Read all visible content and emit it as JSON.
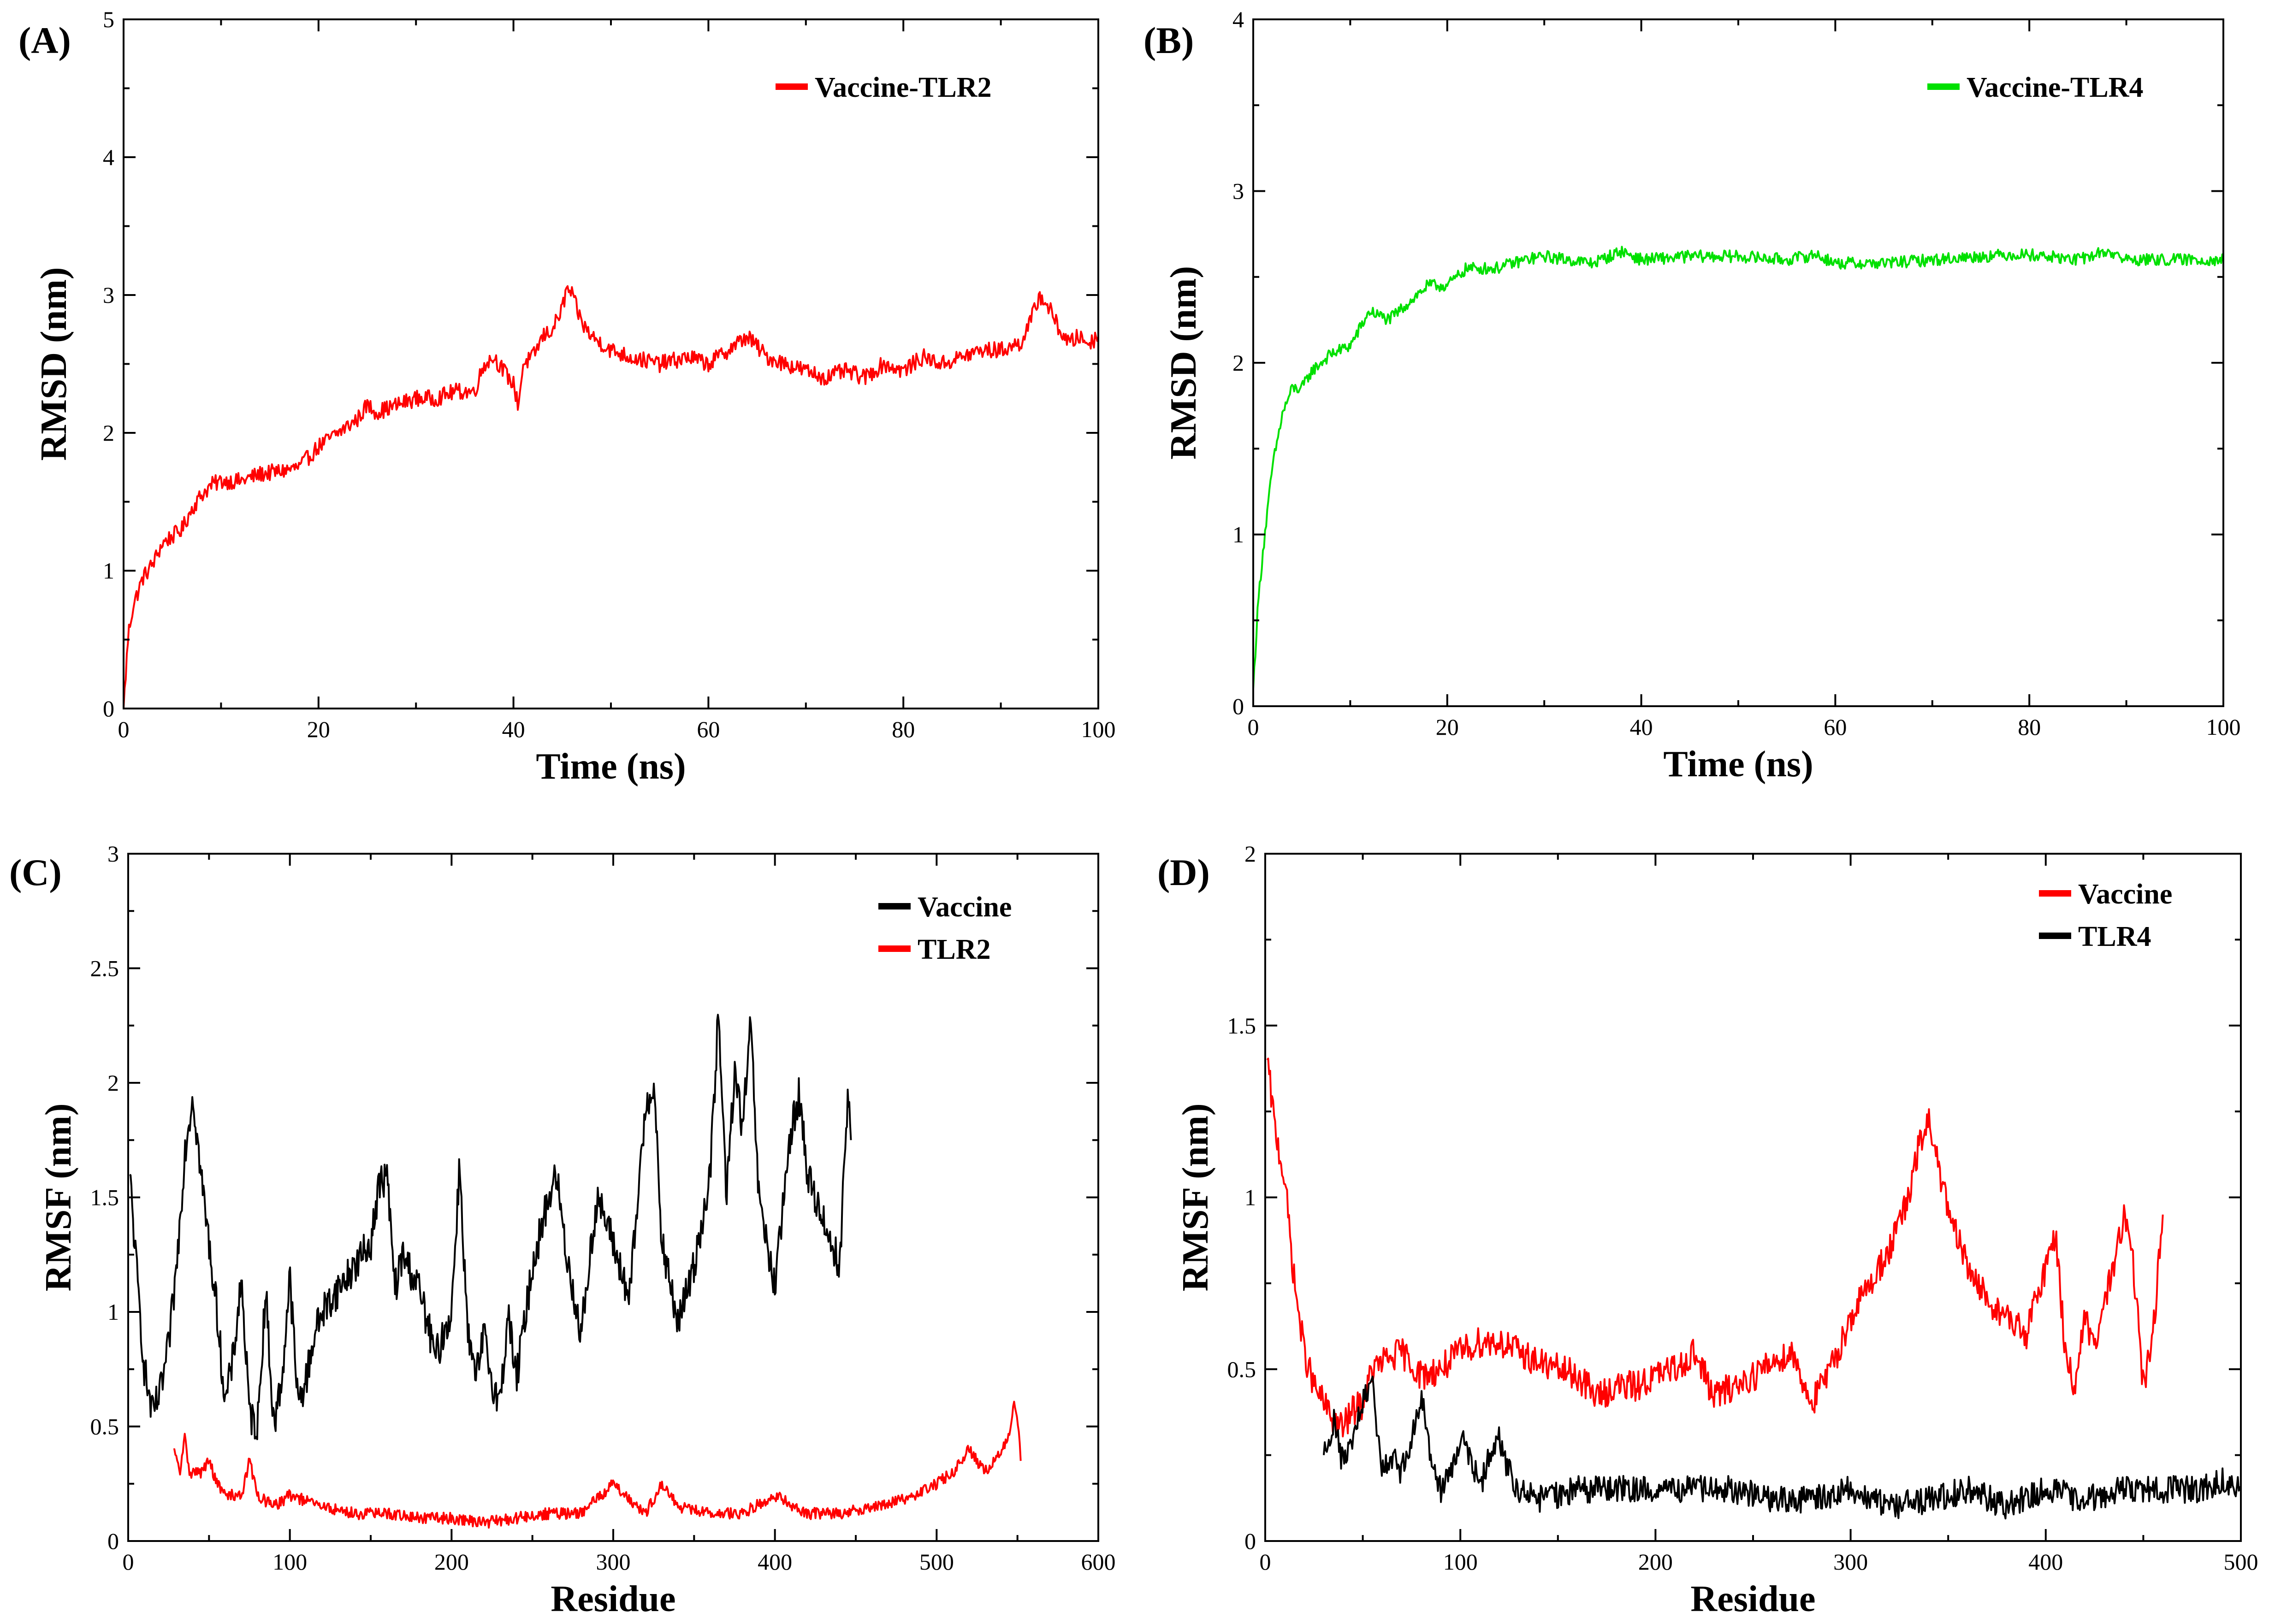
{
  "chart_data": [
    {
      "panel": "(A)",
      "type": "line",
      "xlabel": "Time (ns)",
      "ylabel": "RMSD (nm)",
      "xlim": [
        0,
        100
      ],
      "ylim": [
        0,
        5
      ],
      "xticks": [
        0,
        20,
        40,
        60,
        80,
        100
      ],
      "yticks": [
        0,
        1,
        2,
        3,
        4,
        5
      ],
      "xtick_labels": [
        "0",
        "20",
        "40",
        "60",
        "80",
        "100"
      ],
      "ytick_labels": [
        "0",
        "1",
        "2",
        "3",
        "4",
        "5"
      ],
      "legend_position": "top-right",
      "series": [
        {
          "name": "Vaccine-TLR2",
          "color": "#ff0000",
          "noise": 0.06,
          "x": [
            0,
            0.5,
            1,
            2,
            3,
            4,
            5,
            6,
            7,
            8,
            9,
            10,
            12,
            14,
            16,
            18,
            20,
            22,
            24,
            25,
            26,
            28,
            30,
            32,
            34,
            36,
            37,
            38,
            39,
            40,
            40.5,
            41,
            42,
            43,
            44,
            45,
            45.5,
            46,
            47,
            48,
            50,
            52,
            55,
            58,
            60,
            62,
            64,
            66,
            68,
            70,
            72,
            74,
            76,
            78,
            80,
            82,
            84,
            86,
            88,
            90,
            92,
            93,
            94,
            95,
            96,
            97,
            98,
            99,
            100
          ],
          "y": [
            0.0,
            0.55,
            0.75,
            0.95,
            1.05,
            1.2,
            1.25,
            1.3,
            1.45,
            1.55,
            1.62,
            1.65,
            1.65,
            1.7,
            1.72,
            1.75,
            1.9,
            2.0,
            2.1,
            2.2,
            2.15,
            2.2,
            2.25,
            2.25,
            2.3,
            2.3,
            2.5,
            2.55,
            2.45,
            2.35,
            2.2,
            2.5,
            2.55,
            2.7,
            2.75,
            2.9,
            3.05,
            3.0,
            2.8,
            2.7,
            2.6,
            2.55,
            2.5,
            2.55,
            2.5,
            2.6,
            2.7,
            2.55,
            2.5,
            2.45,
            2.4,
            2.45,
            2.4,
            2.5,
            2.45,
            2.55,
            2.5,
            2.55,
            2.6,
            2.6,
            2.65,
            2.8,
            3.0,
            2.9,
            2.75,
            2.65,
            2.7,
            2.65,
            2.7
          ]
        }
      ]
    },
    {
      "panel": "(B)",
      "type": "line",
      "xlabel": "Time (ns)",
      "ylabel": "RMSD (nm)",
      "xlim": [
        0,
        100
      ],
      "ylim": [
        0,
        4
      ],
      "xticks": [
        0,
        20,
        40,
        60,
        80,
        100
      ],
      "yticks": [
        0,
        1,
        2,
        3,
        4
      ],
      "xtick_labels": [
        "0",
        "20",
        "40",
        "60",
        "80",
        "100"
      ],
      "ytick_labels": [
        "0",
        "1",
        "2",
        "3",
        "4"
      ],
      "legend_position": "top-right",
      "series": [
        {
          "name": "Vaccine-TLR4",
          "color": "#00e000",
          "noise": 0.035,
          "x": [
            0,
            0.5,
            1,
            2,
            3,
            4,
            5,
            6,
            8,
            10,
            12,
            14,
            16,
            18,
            20,
            22,
            25,
            28,
            30,
            35,
            38,
            40,
            45,
            50,
            55,
            58,
            60,
            65,
            70,
            75,
            78,
            80,
            85,
            88,
            90,
            95,
            100
          ],
          "y": [
            0.1,
            0.6,
            0.9,
            1.4,
            1.7,
            1.85,
            1.85,
            1.95,
            2.05,
            2.1,
            2.3,
            2.25,
            2.35,
            2.45,
            2.45,
            2.55,
            2.55,
            2.6,
            2.62,
            2.58,
            2.65,
            2.6,
            2.62,
            2.62,
            2.6,
            2.63,
            2.58,
            2.58,
            2.6,
            2.62,
            2.63,
            2.63,
            2.6,
            2.65,
            2.6,
            2.6,
            2.6
          ]
        }
      ]
    },
    {
      "panel": "(C)",
      "type": "line",
      "xlabel": "Residue",
      "ylabel": "RMSF (nm)",
      "xlim": [
        0,
        600
      ],
      "ylim": [
        0,
        3
      ],
      "xticks": [
        0,
        100,
        200,
        300,
        400,
        500,
        600
      ],
      "yticks": [
        0,
        0.5,
        1,
        1.5,
        2,
        2.5,
        3
      ],
      "xtick_labels": [
        "0",
        "100",
        "200",
        "300",
        "400",
        "500",
        "600"
      ],
      "ytick_labels": [
        "0",
        "0.5",
        "1",
        "1.5",
        "2",
        "2.5",
        "3"
      ],
      "legend_position": "top-right",
      "series": [
        {
          "name": "Vaccine",
          "color": "#000000",
          "noise": 0.08,
          "x": [
            1,
            5,
            10,
            15,
            20,
            25,
            30,
            35,
            40,
            45,
            50,
            55,
            60,
            65,
            70,
            75,
            80,
            85,
            90,
            95,
            100,
            105,
            110,
            115,
            120,
            130,
            140,
            150,
            155,
            160,
            165,
            170,
            180,
            190,
            200,
            205,
            210,
            215,
            220,
            225,
            230,
            235,
            240,
            250,
            260,
            265,
            270,
            280,
            290,
            300,
            310,
            320,
            325,
            330,
            340,
            350,
            360,
            365,
            370,
            375,
            380,
            385,
            390,
            400,
            410,
            415,
            420,
            430,
            440,
            445,
            447
          ],
          "y": [
            1.6,
            1.2,
            0.75,
            0.55,
            0.65,
            0.85,
            1.2,
            1.7,
            1.95,
            1.6,
            1.3,
            1.0,
            0.6,
            0.8,
            1.15,
            0.55,
            0.5,
            1.1,
            0.5,
            0.7,
            1.15,
            0.6,
            0.7,
            0.9,
            1.0,
            1.1,
            1.2,
            1.3,
            1.55,
            1.6,
            1.1,
            1.25,
            1.1,
            0.8,
            1.0,
            1.65,
            0.9,
            0.7,
            0.9,
            0.7,
            0.6,
            1.0,
            0.7,
            1.2,
            1.5,
            1.6,
            1.3,
            0.9,
            1.5,
            1.3,
            1.05,
            1.9,
            2.0,
            1.3,
            0.95,
            1.2,
            1.6,
            2.3,
            1.5,
            2.05,
            1.8,
            2.25,
            1.5,
            1.1,
            1.8,
            1.95,
            1.6,
            1.4,
            1.2,
            1.95,
            1.75
          ]
        },
        {
          "name": "TLR2",
          "color": "#ff0000",
          "noise": 0.025,
          "x": [
            28,
            32,
            35,
            38,
            45,
            50,
            55,
            60,
            70,
            75,
            80,
            90,
            100,
            120,
            140,
            160,
            180,
            200,
            220,
            240,
            260,
            280,
            300,
            320,
            330,
            340,
            360,
            380,
            400,
            420,
            440,
            460,
            480,
            500,
            510,
            520,
            530,
            540,
            545,
            548,
            550,
            552
          ],
          "y": [
            0.4,
            0.3,
            0.45,
            0.3,
            0.3,
            0.35,
            0.25,
            0.2,
            0.2,
            0.35,
            0.2,
            0.15,
            0.2,
            0.15,
            0.12,
            0.12,
            0.1,
            0.1,
            0.08,
            0.1,
            0.12,
            0.12,
            0.25,
            0.12,
            0.25,
            0.15,
            0.12,
            0.12,
            0.2,
            0.12,
            0.12,
            0.15,
            0.18,
            0.25,
            0.3,
            0.4,
            0.3,
            0.4,
            0.45,
            0.6,
            0.55,
            0.35
          ]
        }
      ]
    },
    {
      "panel": "(D)",
      "type": "line",
      "xlabel": "Residue",
      "ylabel": "RMSF (nm)",
      "xlim": [
        0,
        500
      ],
      "ylim": [
        0,
        2
      ],
      "xticks": [
        0,
        100,
        200,
        300,
        400,
        500
      ],
      "yticks": [
        0,
        0.5,
        1,
        1.5,
        2
      ],
      "xtick_labels": [
        "0",
        "100",
        "200",
        "300",
        "400",
        "500"
      ],
      "ytick_labels": [
        "0",
        "0.5",
        "1",
        "1.5",
        "2"
      ],
      "legend_position": "top-right",
      "series": [
        {
          "name": "Vaccine",
          "color": "#ff0000",
          "noise": 0.045,
          "x": [
            1,
            5,
            10,
            15,
            20,
            25,
            30,
            35,
            40,
            45,
            50,
            55,
            60,
            70,
            80,
            90,
            100,
            110,
            120,
            130,
            140,
            150,
            160,
            170,
            180,
            190,
            200,
            210,
            220,
            230,
            240,
            250,
            260,
            270,
            280,
            290,
            300,
            310,
            320,
            330,
            335,
            340,
            345,
            350,
            360,
            370,
            380,
            390,
            395,
            400,
            405,
            410,
            415,
            420,
            425,
            430,
            435,
            440,
            445,
            450,
            455,
            460
          ],
          "y": [
            1.4,
            1.2,
            1.05,
            0.75,
            0.55,
            0.45,
            0.4,
            0.35,
            0.33,
            0.38,
            0.4,
            0.5,
            0.52,
            0.55,
            0.48,
            0.5,
            0.55,
            0.58,
            0.58,
            0.55,
            0.52,
            0.5,
            0.48,
            0.42,
            0.45,
            0.45,
            0.48,
            0.5,
            0.55,
            0.42,
            0.45,
            0.48,
            0.52,
            0.55,
            0.4,
            0.5,
            0.65,
            0.75,
            0.85,
            1.0,
            1.15,
            1.22,
            1.1,
            0.95,
            0.8,
            0.7,
            0.65,
            0.6,
            0.7,
            0.8,
            0.9,
            0.55,
            0.45,
            0.65,
            0.55,
            0.7,
            0.8,
            0.95,
            0.8,
            0.45,
            0.6,
            0.95
          ]
        },
        {
          "name": "TLR4",
          "color": "#000000",
          "noise": 0.04,
          "x": [
            30,
            35,
            40,
            45,
            50,
            55,
            60,
            65,
            70,
            75,
            80,
            85,
            90,
            95,
            100,
            105,
            110,
            115,
            120,
            125,
            130,
            140,
            160,
            180,
            200,
            220,
            240,
            260,
            280,
            300,
            320,
            340,
            360,
            380,
            400,
            420,
            440,
            460,
            480,
            490,
            500
          ],
          "y": [
            0.25,
            0.35,
            0.22,
            0.3,
            0.4,
            0.45,
            0.2,
            0.25,
            0.2,
            0.3,
            0.42,
            0.25,
            0.15,
            0.2,
            0.3,
            0.25,
            0.15,
            0.25,
            0.3,
            0.2,
            0.15,
            0.12,
            0.15,
            0.15,
            0.15,
            0.15,
            0.15,
            0.12,
            0.12,
            0.15,
            0.1,
            0.12,
            0.15,
            0.1,
            0.15,
            0.12,
            0.15,
            0.15,
            0.15,
            0.18,
            0.15
          ]
        }
      ]
    }
  ]
}
